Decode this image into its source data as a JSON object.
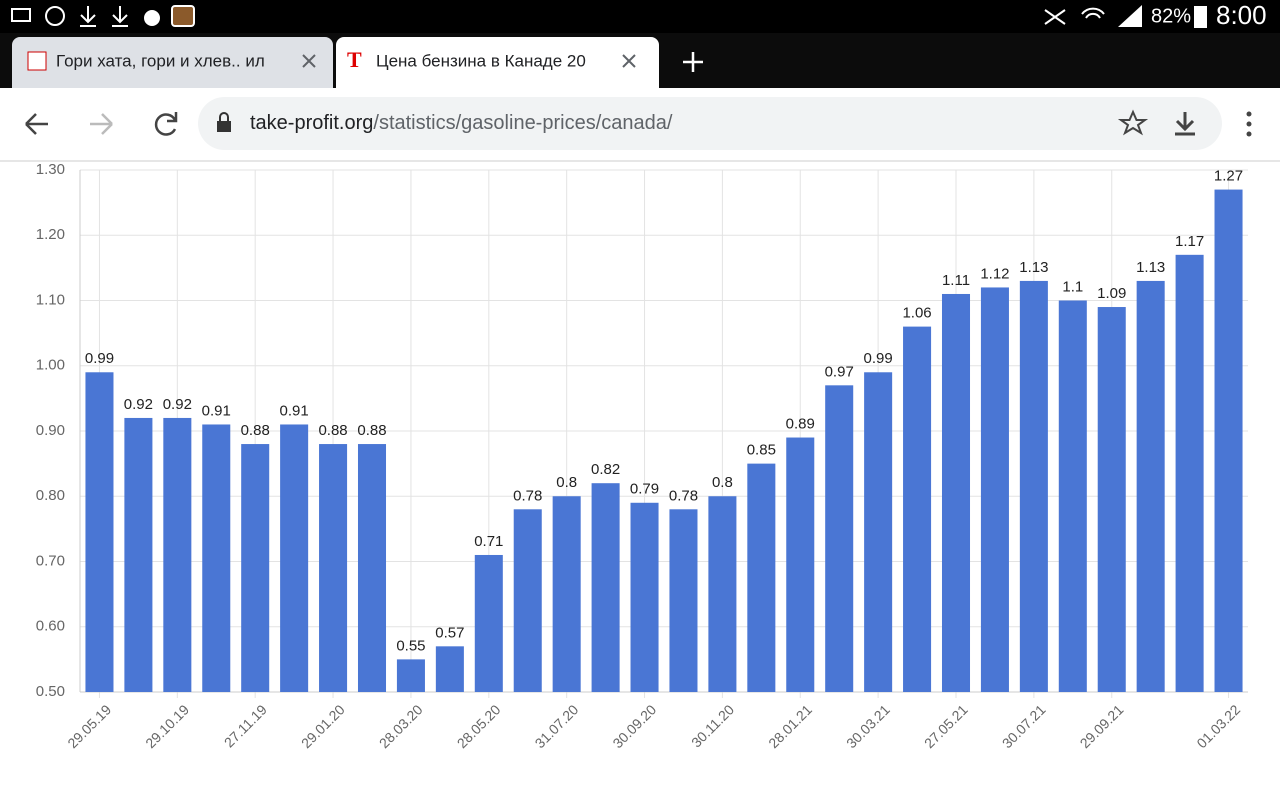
{
  "status_bar": {
    "battery": "82%",
    "time": "8:00"
  },
  "tabs": [
    {
      "title": "Гори хата, гори и хлев.. ил"
    },
    {
      "title": "Цена бензина в Канаде 20"
    }
  ],
  "address_bar": {
    "domain": "take-profit.org",
    "path": "/statistics/gasoline-prices/canada/"
  },
  "chart_data": {
    "type": "bar",
    "categories": [
      "29.05.19",
      null,
      "29.10.19",
      null,
      "27.11.19",
      null,
      "29.01.20",
      null,
      "28.03.20",
      null,
      "28.05.20",
      null,
      "31.07.20",
      null,
      "30.09.20",
      null,
      "30.11.20",
      null,
      "28.01.21",
      null,
      "30.03.21",
      null,
      "27.05.21",
      null,
      "30.07.21",
      null,
      "29.09.21",
      null,
      null,
      "01.03.22"
    ],
    "values": [
      0.99,
      0.92,
      0.92,
      0.91,
      0.88,
      0.91,
      0.88,
      0.88,
      0.55,
      0.57,
      0.71,
      0.78,
      0.8,
      0.82,
      0.79,
      0.78,
      0.8,
      0.85,
      0.89,
      0.97,
      0.99,
      1.06,
      1.11,
      1.12,
      1.13,
      1.1,
      1.09,
      1.13,
      1.17,
      1.27
    ],
    "color": "#4a76d4",
    "ylim": [
      0.5,
      1.3
    ],
    "yticks": [
      {
        "value": 0.5,
        "label": "0.50"
      },
      {
        "value": 0.6,
        "label": "0.60"
      },
      {
        "value": 0.7,
        "label": "0.70"
      },
      {
        "value": 0.8,
        "label": "0.80"
      },
      {
        "value": 0.9,
        "label": "0.90"
      },
      {
        "value": 1.0,
        "label": "1.00"
      },
      {
        "value": 1.1,
        "label": "1.10"
      },
      {
        "value": 1.2,
        "label": "1.20"
      },
      {
        "value": 1.3,
        "label": "1.30"
      }
    ],
    "grid": true
  }
}
